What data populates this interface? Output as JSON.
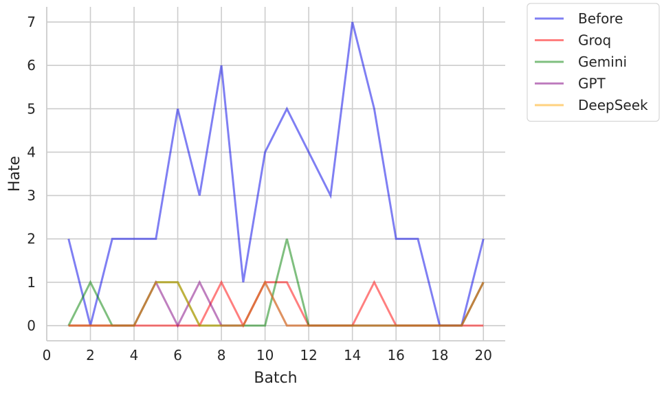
{
  "chart_data": {
    "type": "line",
    "xlabel": "Batch",
    "ylabel": "Hate",
    "xlim": [
      0,
      21
    ],
    "ylim": [
      -0.35,
      7.35
    ],
    "x_ticks": [
      0,
      2,
      4,
      6,
      8,
      10,
      12,
      14,
      16,
      18,
      20
    ],
    "y_ticks": [
      0,
      1,
      2,
      3,
      4,
      5,
      6,
      7
    ],
    "grid": true,
    "legend_position": "outside top-right",
    "x": [
      1,
      2,
      3,
      4,
      5,
      6,
      7,
      8,
      9,
      10,
      11,
      12,
      13,
      14,
      15,
      16,
      17,
      18,
      19,
      20
    ],
    "series": [
      {
        "name": "Before",
        "color": "#0000e8",
        "values": [
          2,
          0,
          2,
          2,
          2,
          5,
          3,
          6,
          1,
          4,
          5,
          4,
          3,
          7,
          5,
          2,
          2,
          0,
          0,
          2
        ]
      },
      {
        "name": "Groq",
        "color": "#ff0000",
        "values": [
          0,
          0,
          0,
          0,
          0,
          0,
          0,
          1,
          0,
          1,
          1,
          0,
          0,
          0,
          1,
          0,
          0,
          0,
          0,
          0
        ]
      },
      {
        "name": "Gemini",
        "color": "#008000",
        "values": [
          0,
          1,
          0,
          0,
          1,
          1,
          0,
          0,
          0,
          0,
          2,
          0,
          0,
          0,
          0,
          0,
          0,
          0,
          0,
          1
        ]
      },
      {
        "name": "GPT",
        "color": "#800080",
        "values": [
          0,
          0,
          0,
          0,
          1,
          0,
          1,
          0,
          0,
          1,
          0,
          0,
          0,
          0,
          0,
          0,
          0,
          0,
          0,
          1
        ]
      },
      {
        "name": "DeepSeek",
        "color": "#ffa500",
        "values": [
          0,
          0,
          0,
          0,
          1,
          1,
          0,
          0,
          0,
          1,
          0,
          0,
          0,
          0,
          0,
          0,
          0,
          0,
          0,
          1
        ]
      }
    ]
  }
}
